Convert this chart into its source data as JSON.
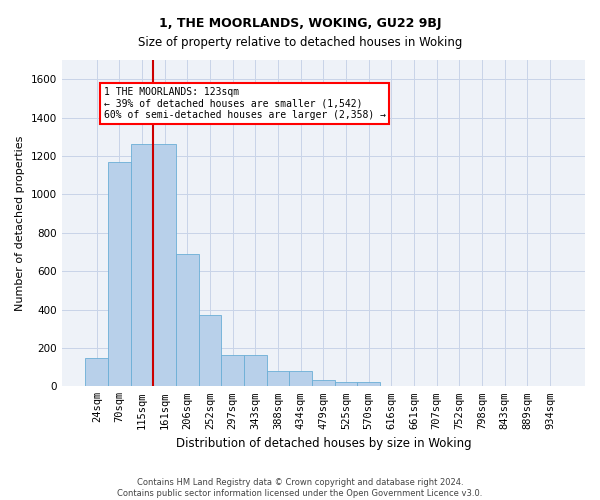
{
  "title": "1, THE MOORLANDS, WOKING, GU22 9BJ",
  "subtitle": "Size of property relative to detached houses in Woking",
  "xlabel": "Distribution of detached houses by size in Woking",
  "ylabel": "Number of detached properties",
  "footer_line1": "Contains HM Land Registry data © Crown copyright and database right 2024.",
  "footer_line2": "Contains public sector information licensed under the Open Government Licence v3.0.",
  "bar_labels": [
    "24sqm",
    "70sqm",
    "115sqm",
    "161sqm",
    "206sqm",
    "252sqm",
    "297sqm",
    "343sqm",
    "388sqm",
    "434sqm",
    "479sqm",
    "525sqm",
    "570sqm",
    "616sqm",
    "661sqm",
    "707sqm",
    "752sqm",
    "798sqm",
    "843sqm",
    "889sqm",
    "934sqm"
  ],
  "bar_values": [
    150,
    1170,
    1260,
    1260,
    690,
    370,
    165,
    165,
    80,
    80,
    35,
    20,
    20,
    0,
    0,
    0,
    0,
    0,
    0,
    0,
    0
  ],
  "bar_color": "#b8d0ea",
  "bar_edgecolor": "#6baed6",
  "ylim": [
    0,
    1700
  ],
  "yticks": [
    0,
    200,
    400,
    600,
    800,
    1000,
    1200,
    1400,
    1600
  ],
  "vline_x": 2.5,
  "annotation_text_line1": "1 THE MOORLANDS: 123sqm",
  "annotation_text_line2": "← 39% of detached houses are smaller (1,542)",
  "annotation_text_line3": "60% of semi-detached houses are larger (2,358) →",
  "grid_color": "#c8d4e8",
  "bg_color": "#eef2f8",
  "vline_color": "#cc0000",
  "title_fontsize": 9,
  "subtitle_fontsize": 8.5,
  "ylabel_fontsize": 8,
  "xlabel_fontsize": 8.5,
  "tick_fontsize": 7.5,
  "footer_fontsize": 6,
  "ann_fontsize": 7
}
